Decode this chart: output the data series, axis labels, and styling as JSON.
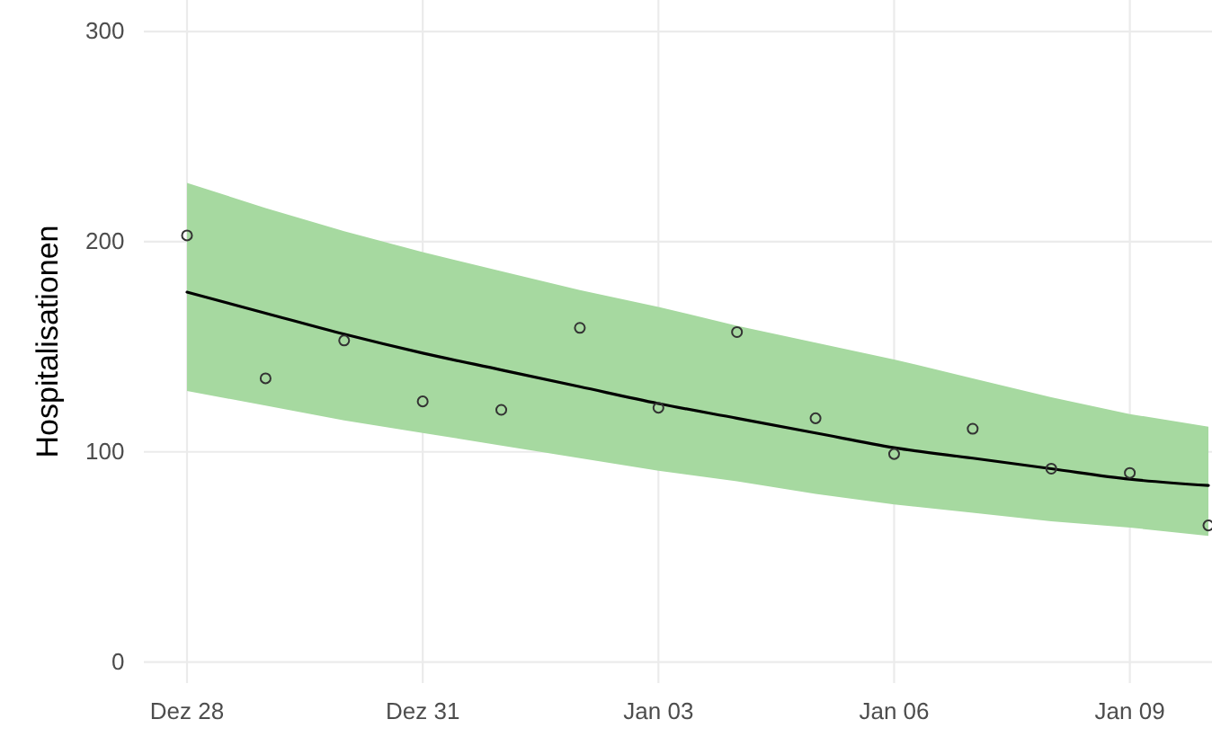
{
  "chart_data": {
    "type": "line",
    "ylabel": "Hospitalisationen",
    "grid": true,
    "categories": [
      "Dez 28",
      null,
      null,
      "Dez 31",
      null,
      null,
      "Jan 03",
      null,
      null,
      "Jan 06",
      null,
      null,
      "Jan 09",
      null
    ],
    "ylim": [
      -10,
      315
    ],
    "yticks": [
      0,
      100,
      200,
      300
    ],
    "series": [
      {
        "color": "#000000",
        "marker": "none",
        "line_style": "solid",
        "values": [
          176,
          166,
          156,
          147,
          139,
          131,
          123,
          116,
          109,
          102,
          97,
          92,
          87,
          84
        ],
        "lower": [
          129,
          122,
          115,
          109,
          103,
          97,
          91,
          86,
          80,
          75,
          71,
          67,
          64,
          60
        ],
        "upper": [
          228,
          216,
          205,
          195,
          186,
          177,
          169,
          160,
          152,
          144,
          135,
          126,
          118,
          112
        ]
      },
      {
        "type": "scatter",
        "color": "#333333",
        "marker": "circle",
        "values": [
          203,
          135,
          153,
          124,
          120,
          159,
          121,
          157,
          116,
          99,
          111,
          92,
          90,
          65
        ]
      }
    ]
  }
}
